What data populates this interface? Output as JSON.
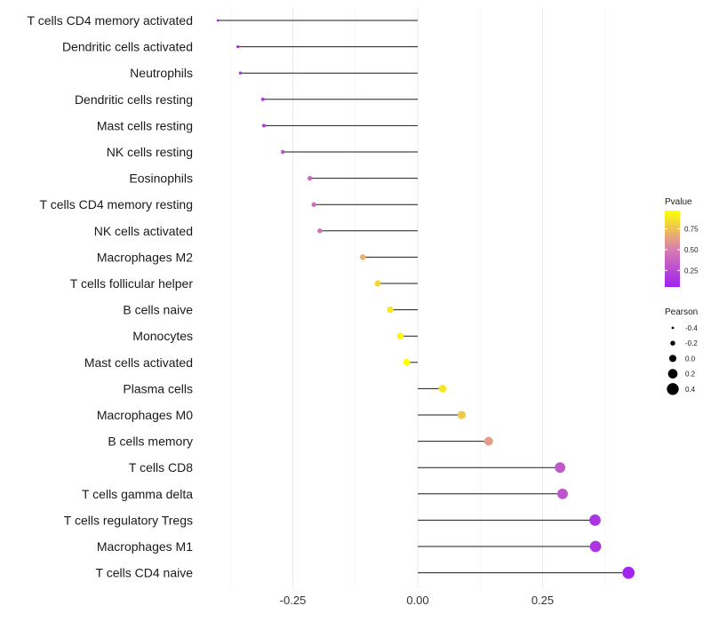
{
  "chart_data": {
    "type": "lollipop",
    "categories": [
      "T cells CD4 memory activated",
      "Dendritic cells activated",
      "Neutrophils",
      "Dendritic cells resting",
      "Mast cells resting",
      "NK cells resting",
      "Eosinophils",
      "T cells CD4 memory resting",
      "NK cells activated",
      "Macrophages M2",
      "T cells follicular helper",
      "B cells naive",
      "Monocytes",
      "Mast cells activated",
      "Plasma cells",
      "Macrophages M0",
      "B cells memory",
      "T cells CD8",
      "T cells gamma delta",
      "T cells regulatory  Tregs",
      "Macrophages M1",
      "T cells CD4 naive"
    ],
    "values": [
      -0.4,
      -0.36,
      -0.355,
      -0.31,
      -0.308,
      -0.27,
      -0.216,
      -0.208,
      -0.196,
      -0.11,
      -0.08,
      -0.055,
      -0.035,
      -0.022,
      0.05,
      0.088,
      0.142,
      0.285,
      0.29,
      0.355,
      0.356,
      0.422
    ],
    "pvalues": [
      0.05,
      0.12,
      0.12,
      0.18,
      0.18,
      0.3,
      0.4,
      0.42,
      0.45,
      0.7,
      0.82,
      0.88,
      0.95,
      0.97,
      0.88,
      0.78,
      0.62,
      0.32,
      0.3,
      0.15,
      0.15,
      0.08
    ],
    "x_ticks": [
      -0.25,
      0.0,
      0.25
    ],
    "x_tick_labels": [
      "-0.25",
      "0.00",
      "0.25"
    ],
    "xlim": [
      -0.43,
      0.45
    ],
    "title": "",
    "xlabel": "",
    "ylabel": "",
    "grid": true,
    "color_legend": {
      "title": "Pvalue",
      "ticks": [
        0.75,
        0.5,
        0.25
      ],
      "tick_labels": [
        "0.75",
        "0.50",
        "0.25"
      ],
      "range": [
        0.05,
        0.97
      ],
      "low_color": "#a020f0",
      "mid_color": "#d97fb0",
      "high_color": "#ffff00"
    },
    "size_legend": {
      "title": "Pearson",
      "values": [
        -0.4,
        -0.2,
        0.0,
        0.2,
        0.4
      ],
      "labels": [
        "-0.4",
        "-0.2",
        "0.0",
        "0.2",
        "0.4"
      ]
    }
  }
}
